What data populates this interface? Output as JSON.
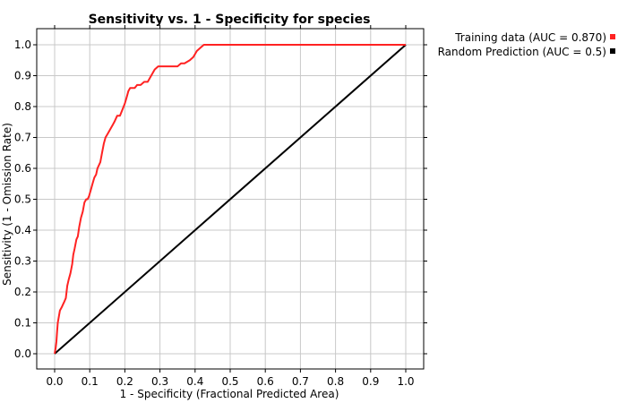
{
  "chart_data": {
    "type": "line",
    "title": "Sensitivity vs. 1 - Specificity for species",
    "xlabel": "1 - Specificity  (Fractional Predicted Area)",
    "ylabel": "Sensitivity (1 - Omission Rate)",
    "xlim": [
      0,
      1
    ],
    "ylim": [
      0,
      1
    ],
    "ticks": [
      "0.0",
      "0.1",
      "0.2",
      "0.3",
      "0.4",
      "0.5",
      "0.6",
      "0.7",
      "0.8",
      "0.9",
      "1.0"
    ],
    "tick_values": [
      0,
      0.1,
      0.2,
      0.3,
      0.4,
      0.5,
      0.6,
      0.7,
      0.8,
      0.9,
      1.0
    ],
    "grid": true,
    "legend_position": "top-right",
    "series": [
      {
        "name": "Training data (AUC = 0.870)",
        "color": "#ff2222",
        "x": [
          0.0,
          0.003,
          0.005,
          0.007,
          0.009,
          0.012,
          0.015,
          0.02,
          0.024,
          0.028,
          0.032,
          0.036,
          0.04,
          0.045,
          0.05,
          0.053,
          0.057,
          0.062,
          0.066,
          0.07,
          0.075,
          0.08,
          0.085,
          0.09,
          0.094,
          0.098,
          0.103,
          0.108,
          0.113,
          0.118,
          0.122,
          0.126,
          0.13,
          0.135,
          0.14,
          0.145,
          0.15,
          0.155,
          0.16,
          0.165,
          0.17,
          0.178,
          0.186,
          0.193,
          0.2,
          0.205,
          0.21,
          0.215,
          0.22,
          0.228,
          0.235,
          0.245,
          0.255,
          0.265,
          0.275,
          0.285,
          0.295,
          0.31,
          0.33,
          0.35,
          0.36,
          0.37,
          0.385,
          0.395,
          0.405,
          0.415,
          0.425,
          0.45,
          0.5,
          0.6,
          0.7,
          0.8,
          0.9,
          1.0
        ],
        "y": [
          0.0,
          0.02,
          0.04,
          0.07,
          0.1,
          0.12,
          0.14,
          0.15,
          0.16,
          0.17,
          0.18,
          0.22,
          0.24,
          0.26,
          0.29,
          0.32,
          0.34,
          0.37,
          0.38,
          0.41,
          0.44,
          0.46,
          0.49,
          0.5,
          0.5,
          0.51,
          0.53,
          0.55,
          0.57,
          0.58,
          0.6,
          0.61,
          0.62,
          0.65,
          0.68,
          0.7,
          0.71,
          0.72,
          0.73,
          0.74,
          0.75,
          0.77,
          0.77,
          0.79,
          0.81,
          0.83,
          0.85,
          0.86,
          0.86,
          0.86,
          0.87,
          0.87,
          0.88,
          0.88,
          0.9,
          0.92,
          0.93,
          0.93,
          0.93,
          0.93,
          0.94,
          0.94,
          0.95,
          0.96,
          0.98,
          0.99,
          1.0,
          1.0,
          1.0,
          1.0,
          1.0,
          1.0,
          1.0,
          1.0
        ]
      },
      {
        "name": "Random Prediction (AUC = 0.5)",
        "color": "#000000",
        "x": [
          0,
          1
        ],
        "y": [
          0,
          1
        ]
      }
    ]
  }
}
